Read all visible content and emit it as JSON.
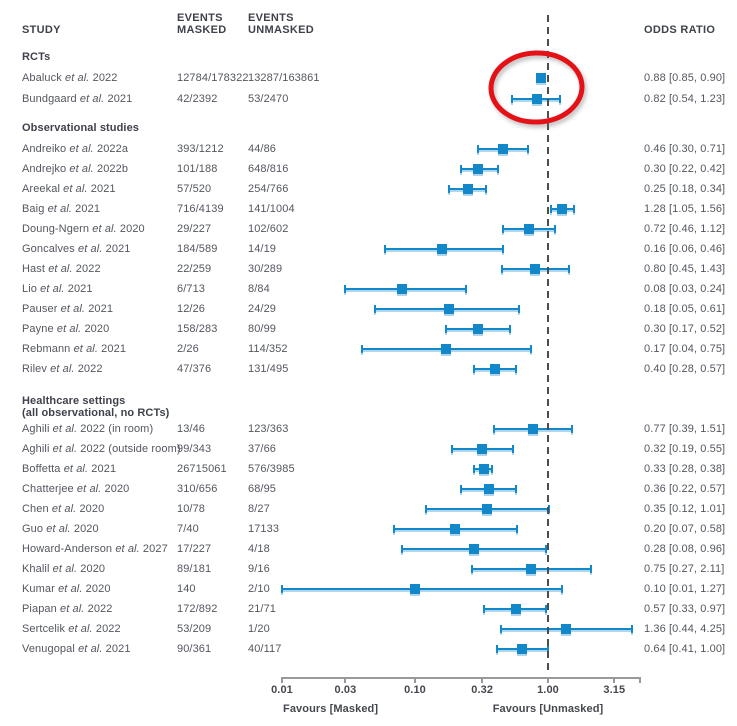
{
  "columns": {
    "study": "STUDY",
    "events_masked": [
      "EVENTS",
      "MASKED"
    ],
    "events_unmasked": [
      "EVENTS",
      "UNMASKED"
    ],
    "odds_ratio": "ODDS RATIO"
  },
  "colors": {
    "marker_blue": "#1287c9",
    "marker_blue_light": "#aed7ee",
    "reference_dash_gray": "#4c4c4c",
    "axis_gray": "#98999d",
    "body_text": "#54575f",
    "heading_text": "#3f424b",
    "annotation_red": "#e41116"
  },
  "chart_data": {
    "type": "scatter",
    "subtype": "forest-plot",
    "title": "",
    "x_axis": {
      "scale": "log",
      "ticks": [
        0.01,
        0.03,
        0.1,
        0.32,
        1.0,
        3.15
      ],
      "tick_labels": [
        "0.01",
        "0.03",
        "0.10",
        "0.32",
        "1.00",
        "3.15"
      ],
      "reference_line": 1.0,
      "left_label": "Favours [Masked]",
      "right_label": "Favours [Unmasked]"
    },
    "groups": [
      {
        "name_lines": [
          "RCTs"
        ],
        "studies": [
          {
            "study": "Abaluck et al. 2022",
            "events_masked": "12784/178322",
            "events_unmasked": "13287/163861",
            "or": 0.88,
            "ci_low": 0.85,
            "ci_high": 0.9,
            "odds_ratio_label": "0.88 [0.85, 0.90]"
          },
          {
            "study": "Bundgaard et al. 2021",
            "events_masked": "42/2392",
            "events_unmasked": "53/2470",
            "or": 0.82,
            "ci_low": 0.54,
            "ci_high": 1.23,
            "odds_ratio_label": "0.82 [0.54, 1.23]"
          }
        ]
      },
      {
        "name_lines": [
          "Observational studies"
        ],
        "studies": [
          {
            "study": "Andreiko et al. 2022a",
            "events_masked": "393/1212",
            "events_unmasked": "44/86",
            "or": 0.46,
            "ci_low": 0.3,
            "ci_high": 0.71,
            "odds_ratio_label": "0.46 [0.30, 0.71]"
          },
          {
            "study": "Andrejko et al. 2022b",
            "events_masked": "101/188",
            "events_unmasked": "648/816",
            "or": 0.3,
            "ci_low": 0.22,
            "ci_high": 0.42,
            "odds_ratio_label": "0.30 [0.22, 0.42]"
          },
          {
            "study": "Areekal et al. 2021",
            "events_masked": "57/520",
            "events_unmasked": "254/766",
            "or": 0.25,
            "ci_low": 0.18,
            "ci_high": 0.34,
            "odds_ratio_label": "0.25 [0.18, 0.34]"
          },
          {
            "study": "Baig et al. 2021",
            "events_masked": "716/4139",
            "events_unmasked": "141/1004",
            "or": 1.28,
            "ci_low": 1.05,
            "ci_high": 1.56,
            "odds_ratio_label": "1.28 [1.05, 1.56]"
          },
          {
            "study": "Doung-Ngern et al. 2020",
            "events_masked": "29/227",
            "events_unmasked": "102/602",
            "or": 0.72,
            "ci_low": 0.46,
            "ci_high": 1.12,
            "odds_ratio_label": "0.72 [0.46, 1.12]"
          },
          {
            "study": "Goncalves et al. 2021",
            "events_masked": "184/589",
            "events_unmasked": "14/19",
            "or": 0.16,
            "ci_low": 0.06,
            "ci_high": 0.46,
            "odds_ratio_label": "0.16 [0.06, 0.46]"
          },
          {
            "study": "Hast et al. 2022",
            "events_masked": "22/259",
            "events_unmasked": "30/289",
            "or": 0.8,
            "ci_low": 0.45,
            "ci_high": 1.43,
            "odds_ratio_label": "0.80 [0.45, 1.43]"
          },
          {
            "study": "Lio et al. 2021",
            "events_masked": "6/713",
            "events_unmasked": "8/84",
            "or": 0.08,
            "ci_low": 0.03,
            "ci_high": 0.24,
            "odds_ratio_label": "0.08 [0.03, 0.24]"
          },
          {
            "study": "Pauser et al. 2021",
            "events_masked": "12/26",
            "events_unmasked": "24/29",
            "or": 0.18,
            "ci_low": 0.05,
            "ci_high": 0.61,
            "odds_ratio_label": "0.18 [0.05, 0.61]"
          },
          {
            "study": "Payne et al. 2020",
            "events_masked": "158/283",
            "events_unmasked": "80/99",
            "or": 0.3,
            "ci_low": 0.17,
            "ci_high": 0.52,
            "odds_ratio_label": "0.30 [0.17, 0.52]"
          },
          {
            "study": "Rebmann et al. 2021",
            "events_masked": "2/26",
            "events_unmasked": "114/352",
            "or": 0.17,
            "ci_low": 0.04,
            "ci_high": 0.75,
            "odds_ratio_label": "0.17 [0.04, 0.75]"
          },
          {
            "study": "Rilev et al. 2022",
            "events_masked": "47/376",
            "events_unmasked": "131/495",
            "or": 0.4,
            "ci_low": 0.28,
            "ci_high": 0.57,
            "odds_ratio_label": "0.40 [0.28, 0.57]"
          }
        ]
      },
      {
        "name_lines": [
          "Healthcare settings",
          "(all observational, no RCTs)"
        ],
        "studies": [
          {
            "study": "Aghili et al. 2022 (in room)",
            "events_masked": "13/46",
            "events_unmasked": "123/363",
            "or": 0.77,
            "ci_low": 0.39,
            "ci_high": 1.51,
            "odds_ratio_label": "0.77 [0.39, 1.51]"
          },
          {
            "study": "Aghili et al. 2022 (outside room)",
            "events_masked": "99/343",
            "events_unmasked": "37/66",
            "or": 0.32,
            "ci_low": 0.19,
            "ci_high": 0.55,
            "odds_ratio_label": "0.32 [0.19, 0.55]"
          },
          {
            "study": "Boffetta et al. 2021",
            "events_masked": "26715061",
            "events_unmasked": "576/3985",
            "or": 0.33,
            "ci_low": 0.28,
            "ci_high": 0.38,
            "odds_ratio_label": "0.33 [0.28, 0.38]"
          },
          {
            "study": "Chatterjee et al. 2020",
            "events_masked": "310/656",
            "events_unmasked": "68/95",
            "or": 0.36,
            "ci_low": 0.22,
            "ci_high": 0.57,
            "odds_ratio_label": "0.36 [0.22, 0.57]"
          },
          {
            "study": "Chen et al. 2020",
            "events_masked": "10/78",
            "events_unmasked": "8/27",
            "or": 0.35,
            "ci_low": 0.12,
            "ci_high": 1.01,
            "odds_ratio_label": "0.35 [0.12, 1.01]"
          },
          {
            "study": "Guo et al. 2020",
            "events_masked": "7/40",
            "events_unmasked": "17133",
            "or": 0.2,
            "ci_low": 0.07,
            "ci_high": 0.58,
            "odds_ratio_label": "0.20 [0.07, 0.58]"
          },
          {
            "study": "Howard-Anderson et al. 2027",
            "events_masked": "17/227",
            "events_unmasked": "4/18",
            "or": 0.28,
            "ci_low": 0.08,
            "ci_high": 0.96,
            "odds_ratio_label": "0.28 [0.08, 0.96]"
          },
          {
            "study": "Khalil et al. 2020",
            "events_masked": "89/181",
            "events_unmasked": "9/16",
            "or": 0.75,
            "ci_low": 0.27,
            "ci_high": 2.11,
            "odds_ratio_label": "0.75 [0.27, 2.11]"
          },
          {
            "study": "Kumar et al. 2020",
            "events_masked": "140",
            "events_unmasked": "2/10",
            "or": 0.1,
            "ci_low": 0.01,
            "ci_high": 1.27,
            "odds_ratio_label": "0.10 [0.01, 1.27]"
          },
          {
            "study": "Piapan et al. 2022",
            "events_masked": "172/892",
            "events_unmasked": "21/71",
            "or": 0.57,
            "ci_low": 0.33,
            "ci_high": 0.97,
            "odds_ratio_label": "0.57 [0.33, 0.97]"
          },
          {
            "study": "Sertcelik et al. 2022",
            "events_masked": "53/209",
            "events_unmasked": "1/20",
            "or": 1.36,
            "ci_low": 0.44,
            "ci_high": 4.25,
            "odds_ratio_label": "1.36 [0.44, 4.25]"
          },
          {
            "study": "Venugopal et al. 2021",
            "events_masked": "90/361",
            "events_unmasked": "40/117",
            "or": 0.64,
            "ci_low": 0.41,
            "ci_high": 1.0,
            "odds_ratio_label": "0.64 [0.41, 1.00]"
          }
        ]
      }
    ],
    "annotation": {
      "shape": "hand-drawn-red-ellipse",
      "circled_studies": [
        "Abaluck et al. 2022",
        "Bundgaard et al. 2021"
      ]
    }
  }
}
